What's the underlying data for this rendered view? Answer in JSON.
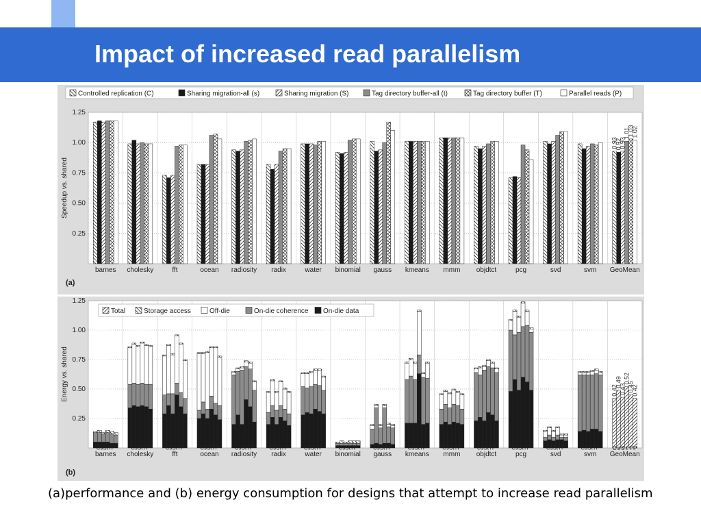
{
  "slide": {
    "title": "Impact of increased read parallelism",
    "caption": "(a)performance and (b) energy consumption for designs that attempt to increase read parallelism"
  },
  "colors": {
    "title_bar": "#2f6bd0",
    "deco_light": "#8fb8f2",
    "deco_mid": "#5d93e6",
    "panel_bg": "#dcdcdc",
    "plot_bg": "#ffffff",
    "fill_black": "#1a1a1a",
    "fill_gray": "#8c8c8c",
    "fill_white": "#ffffff"
  },
  "chart_data": [
    {
      "type": "bar",
      "panel_label": "(a)",
      "ylabel": "Speedup vs. shared",
      "ylim": [
        0,
        1.25
      ],
      "yticks": [
        "0.25",
        "0.50",
        "0.75",
        "1.00",
        "1.25"
      ],
      "grid": true,
      "legend_position": "top",
      "categories": [
        "barnes",
        "cholesky",
        "fft",
        "ocean",
        "radiosity",
        "radix",
        "water",
        "binomial",
        "gauss",
        "kmeans",
        "mmm",
        "objdtct",
        "pcg",
        "svd",
        "svm",
        "GeoMean"
      ],
      "series": [
        {
          "name": "Controlled replication (C)",
          "pattern": "hatch-back",
          "values": [
            1.17,
            0.99,
            0.73,
            0.82,
            0.94,
            0.82,
            0.99,
            0.92,
            1.01,
            1.01,
            1.04,
            0.97,
            0.71,
            1.01,
            0.99,
            0.93
          ]
        },
        {
          "name": "Sharing migration-all (s)",
          "pattern": "solid-black",
          "values": [
            1.18,
            1.02,
            0.71,
            0.82,
            0.93,
            0.78,
            0.99,
            0.91,
            0.93,
            1.01,
            1.04,
            0.95,
            0.72,
            0.99,
            0.95,
            0.92
          ]
        },
        {
          "name": "Sharing migration (S)",
          "pattern": "hatch-fwd",
          "values": [
            1.17,
            0.99,
            0.73,
            0.82,
            0.94,
            0.82,
            0.99,
            0.92,
            0.94,
            1.01,
            1.04,
            0.97,
            0.71,
            1.01,
            0.97,
            0.93
          ]
        },
        {
          "name": "Tag directory buffer-all (t)",
          "pattern": "solid-gray",
          "values": [
            1.18,
            1.0,
            0.97,
            1.06,
            1.01,
            0.93,
            0.98,
            1.02,
            1.0,
            1.01,
            1.04,
            0.99,
            0.98,
            1.06,
            0.99,
            1.01
          ]
        },
        {
          "name": "Tag directory buffer (T)",
          "pattern": "crosshatch",
          "values": [
            1.18,
            0.99,
            0.98,
            1.07,
            1.02,
            0.95,
            1.01,
            1.03,
            1.17,
            1.01,
            1.04,
            1.01,
            0.94,
            1.09,
            0.98,
            1.03
          ]
        },
        {
          "name": "Parallel reads (P)",
          "pattern": "solid-white",
          "values": [
            1.18,
            0.99,
            0.98,
            1.03,
            1.03,
            0.95,
            1.01,
            1.03,
            1.1,
            1.01,
            1.04,
            1.01,
            0.86,
            1.09,
            1.0,
            1.02
          ]
        }
      ],
      "annotations": [
        "0.93",
        "0.92",
        "0.93",
        "1.01",
        "1.03",
        "1.02"
      ]
    },
    {
      "type": "bar",
      "stacked": true,
      "panel_label": "(b)",
      "ylabel": "Energy vs. shared",
      "ylim": [
        0,
        1.25
      ],
      "yticks": [
        "0.25",
        "0.50",
        "0.75",
        "1.00",
        "1.25"
      ],
      "grid": true,
      "legend_position": "top-left",
      "bar_labels": [
        "C",
        "s",
        "S",
        "t",
        "T",
        "P"
      ],
      "group_bar_text": "CsStTP",
      "categories": [
        "barnes",
        "cholesky",
        "fft",
        "ocean",
        "radiosity",
        "radix",
        "water",
        "binomial",
        "gauss",
        "kmeans",
        "mmm",
        "objdtct",
        "pcg",
        "svd",
        "svm",
        "GeoMean"
      ],
      "components": [
        {
          "name": "Total",
          "pattern": "hatch-fwd"
        },
        {
          "name": "Storage access",
          "pattern": "hatch-back"
        },
        {
          "name": "Off-die",
          "pattern": "solid-white"
        },
        {
          "name": "On-die coherence",
          "pattern": "solid-gray"
        },
        {
          "name": "On-die data",
          "pattern": "solid-black"
        }
      ],
      "groups": [
        {
          "bars": [
            [
              0.05,
              0.08,
              0.0,
              0.01
            ],
            [
              0.05,
              0.08,
              0.0,
              0.02
            ],
            [
              0.05,
              0.07,
              0.0,
              0.01
            ],
            [
              0.05,
              0.08,
              0.0,
              0.02
            ],
            [
              0.04,
              0.08,
              0.0,
              0.02
            ],
            [
              0.04,
              0.07,
              0.0,
              0.02
            ]
          ]
        },
        {
          "bars": [
            [
              0.34,
              0.2,
              0.31,
              0.01
            ],
            [
              0.36,
              0.19,
              0.33,
              0.01
            ],
            [
              0.35,
              0.19,
              0.32,
              0.01
            ],
            [
              0.36,
              0.19,
              0.34,
              0.01
            ],
            [
              0.35,
              0.19,
              0.33,
              0.01
            ],
            [
              0.33,
              0.21,
              0.32,
              0.01
            ]
          ]
        },
        {
          "bars": [
            [
              0.29,
              0.16,
              0.33,
              0.01
            ],
            [
              0.36,
              0.1,
              0.41,
              0.01
            ],
            [
              0.29,
              0.17,
              0.33,
              0.01
            ],
            [
              0.45,
              0.1,
              0.4,
              0.01
            ],
            [
              0.35,
              0.12,
              0.41,
              0.01
            ],
            [
              0.29,
              0.13,
              0.32,
              0.01
            ]
          ]
        },
        {
          "bars": [
            [
              0.25,
              0.07,
              0.48,
              0.01
            ],
            [
              0.29,
              0.1,
              0.41,
              0.01
            ],
            [
              0.25,
              0.08,
              0.48,
              0.01
            ],
            [
              0.33,
              0.11,
              0.41,
              0.01
            ],
            [
              0.28,
              0.1,
              0.47,
              0.01
            ],
            [
              0.24,
              0.12,
              0.41,
              0.01
            ]
          ]
        },
        {
          "bars": [
            [
              0.2,
              0.42,
              0.02,
              0.01
            ],
            [
              0.28,
              0.37,
              0.02,
              0.01
            ],
            [
              0.2,
              0.46,
              0.02,
              0.01
            ],
            [
              0.41,
              0.28,
              0.04,
              0.01
            ],
            [
              0.35,
              0.32,
              0.05,
              0.01
            ],
            [
              0.22,
              0.27,
              0.07,
              0.01
            ]
          ]
        },
        {
          "bars": [
            [
              0.2,
              0.1,
              0.17,
              0.01
            ],
            [
              0.26,
              0.1,
              0.21,
              0.01
            ],
            [
              0.2,
              0.12,
              0.15,
              0.01
            ],
            [
              0.26,
              0.1,
              0.2,
              0.01
            ],
            [
              0.23,
              0.1,
              0.17,
              0.01
            ],
            [
              0.19,
              0.1,
              0.18,
              0.01
            ]
          ]
        },
        {
          "bars": [
            [
              0.28,
              0.24,
              0.11,
              0.01
            ],
            [
              0.3,
              0.21,
              0.12,
              0.01
            ],
            [
              0.29,
              0.23,
              0.12,
              0.01
            ],
            [
              0.33,
              0.21,
              0.12,
              0.01
            ],
            [
              0.31,
              0.22,
              0.13,
              0.01
            ],
            [
              0.29,
              0.2,
              0.11,
              0.01
            ]
          ]
        },
        {
          "bars": [
            [
              0.02,
              0.02,
              0.0,
              0.01
            ],
            [
              0.02,
              0.02,
              0.0,
              0.02
            ],
            [
              0.02,
              0.02,
              0.0,
              0.01
            ],
            [
              0.02,
              0.02,
              0.0,
              0.02
            ],
            [
              0.02,
              0.02,
              0.0,
              0.02
            ],
            [
              0.02,
              0.02,
              0.0,
              0.02
            ]
          ]
        },
        {
          "bars": [
            [
              0.03,
              0.13,
              0.03,
              0.01
            ],
            [
              0.04,
              0.3,
              0.02,
              0.01
            ],
            [
              0.03,
              0.14,
              0.02,
              0.01
            ],
            [
              0.04,
              0.3,
              0.02,
              0.01
            ],
            [
              0.04,
              0.14,
              0.02,
              0.01
            ],
            [
              0.03,
              0.14,
              0.02,
              0.01
            ]
          ]
        },
        {
          "bars": [
            [
              0.21,
              0.37,
              0.14,
              0.01
            ],
            [
              0.21,
              0.4,
              0.14,
              0.01
            ],
            [
              0.21,
              0.37,
              0.14,
              0.01
            ],
            [
              0.63,
              0.16,
              0.37,
              0.01
            ],
            [
              0.2,
              0.4,
              0.03,
              0.01
            ],
            [
              0.21,
              0.38,
              0.13,
              0.01
            ]
          ]
        },
        {
          "bars": [
            [
              0.2,
              0.13,
              0.12,
              0.01
            ],
            [
              0.22,
              0.15,
              0.11,
              0.01
            ],
            [
              0.2,
              0.14,
              0.12,
              0.01
            ],
            [
              0.22,
              0.15,
              0.12,
              0.01
            ],
            [
              0.21,
              0.15,
              0.11,
              0.01
            ],
            [
              0.2,
              0.13,
              0.12,
              0.01
            ]
          ]
        },
        {
          "bars": [
            [
              0.23,
              0.41,
              0.03,
              0.01
            ],
            [
              0.26,
              0.36,
              0.06,
              0.01
            ],
            [
              0.23,
              0.43,
              0.03,
              0.01
            ],
            [
              0.3,
              0.39,
              0.05,
              0.01
            ],
            [
              0.28,
              0.4,
              0.04,
              0.01
            ],
            [
              0.23,
              0.41,
              0.03,
              0.01
            ]
          ]
        },
        {
          "bars": [
            [
              0.48,
              0.52,
              0.08,
              0.01
            ],
            [
              0.58,
              0.38,
              0.2,
              0.01
            ],
            [
              0.49,
              0.49,
              0.13,
              0.01
            ],
            [
              0.6,
              0.43,
              0.2,
              0.01
            ],
            [
              0.56,
              0.48,
              0.12,
              0.01
            ],
            [
              0.49,
              0.49,
              0.03,
              0.01
            ]
          ]
        },
        {
          "bars": [
            [
              0.06,
              0.03,
              0.05,
              0.01
            ],
            [
              0.07,
              0.04,
              0.06,
              0.01
            ],
            [
              0.06,
              0.03,
              0.05,
              0.01
            ],
            [
              0.07,
              0.04,
              0.06,
              0.01
            ],
            [
              0.07,
              0.02,
              0.02,
              0.01
            ],
            [
              0.06,
              0.03,
              0.02,
              0.01
            ]
          ]
        },
        {
          "bars": [
            [
              0.14,
              0.48,
              0.02,
              0.01
            ],
            [
              0.15,
              0.47,
              0.02,
              0.01
            ],
            [
              0.14,
              0.48,
              0.02,
              0.01
            ],
            [
              0.16,
              0.46,
              0.03,
              0.01
            ],
            [
              0.16,
              0.47,
              0.03,
              0.01
            ],
            [
              0.14,
              0.48,
              0.02,
              0.01
            ]
          ]
        },
        {
          "bars": [
            [
              0.42,
              0,
              0,
              0
            ],
            [
              0.49,
              0,
              0,
              0
            ],
            [
              0.43,
              0,
              0,
              0
            ],
            [
              0.52,
              0,
              0,
              0
            ],
            [
              0.45,
              0,
              0,
              0
            ],
            [
              0.42,
              0,
              0,
              0
            ]
          ],
          "total_only": true
        }
      ],
      "annotations": [
        "0.42",
        "0.49",
        "0.43",
        "0.52",
        "0.45",
        "0.42"
      ]
    }
  ]
}
